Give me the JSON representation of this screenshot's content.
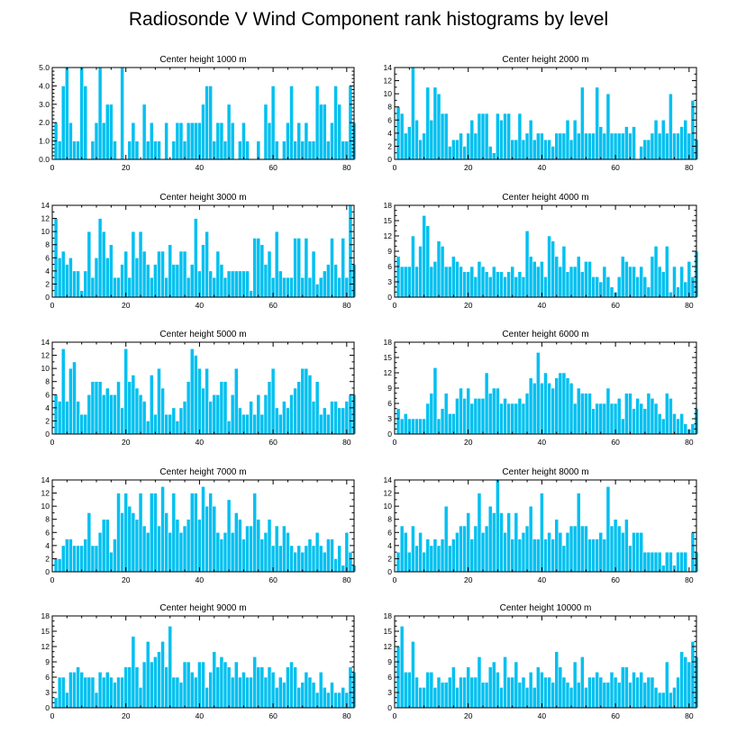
{
  "title": "Radiosonde V Wind Component rank histograms by level",
  "colors": {
    "bar": "#00c0f0",
    "bar_edge": "#ffffff",
    "axis": "#000000"
  },
  "chart_data": [
    {
      "type": "bar",
      "title": "Center height 1000 m",
      "xlim": [
        0,
        82
      ],
      "ylim": [
        0,
        5
      ],
      "xticks": [
        0,
        20,
        40,
        60,
        80
      ],
      "yticks": [
        0,
        1,
        2,
        3,
        4,
        5
      ],
      "ytick_labels": [
        "0.0",
        "1.0",
        "2.0",
        "3.0",
        "4.0",
        "5.0"
      ],
      "values": [
        2,
        1,
        4,
        5,
        2,
        1,
        1,
        5,
        4,
        0,
        1,
        2,
        5,
        2,
        3,
        3,
        1,
        0,
        5,
        0,
        1,
        2,
        1,
        0,
        3,
        1,
        2,
        1,
        1,
        0,
        2,
        0,
        1,
        2,
        2,
        1,
        2,
        2,
        2,
        2,
        3,
        4,
        4,
        1,
        2,
        2,
        1,
        3,
        2,
        0,
        1,
        2,
        1,
        0,
        0,
        1,
        0,
        3,
        2,
        4,
        1,
        0,
        1,
        2,
        4,
        1,
        2,
        1,
        2,
        1,
        1,
        4,
        3,
        3,
        1,
        2,
        4,
        3,
        1,
        1,
        4,
        2
      ]
    },
    {
      "type": "bar",
      "title": "Center height 2000 m",
      "xlim": [
        0,
        82
      ],
      "ylim": [
        0,
        14
      ],
      "xticks": [
        0,
        20,
        40,
        60,
        80
      ],
      "yticks": [
        0,
        2,
        4,
        6,
        8,
        10,
        12,
        14
      ],
      "ytick_labels": [
        "0",
        "2",
        "4",
        "6",
        "8",
        "10",
        "12",
        "14"
      ],
      "values": [
        8,
        7,
        4,
        5,
        14,
        6,
        3,
        4,
        11,
        6,
        11,
        10,
        7,
        7,
        2,
        3,
        3,
        4,
        2,
        4,
        6,
        4,
        7,
        7,
        7,
        2,
        1,
        7,
        6,
        7,
        7,
        3,
        3,
        7,
        3,
        4,
        6,
        3,
        4,
        4,
        3,
        3,
        2,
        4,
        4,
        4,
        6,
        3,
        6,
        4,
        11,
        4,
        4,
        4,
        11,
        5,
        4,
        10,
        4,
        4,
        4,
        4,
        5,
        4,
        5,
        0,
        2,
        3,
        3,
        4,
        6,
        4,
        6,
        4,
        10,
        4,
        4,
        5,
        6,
        4,
        9,
        3
      ]
    },
    {
      "type": "bar",
      "title": "Center height 3000 m",
      "xlim": [
        0,
        82
      ],
      "ylim": [
        0,
        14
      ],
      "xticks": [
        0,
        20,
        40,
        60,
        80
      ],
      "yticks": [
        0,
        2,
        4,
        6,
        8,
        10,
        12,
        14
      ],
      "ytick_labels": [
        "0",
        "2",
        "4",
        "6",
        "8",
        "10",
        "12",
        "14"
      ],
      "values": [
        12,
        6,
        7,
        5,
        6,
        4,
        4,
        1,
        4,
        10,
        3,
        6,
        12,
        10,
        6,
        8,
        3,
        3,
        5,
        7,
        3,
        10,
        6,
        10,
        7,
        5,
        3,
        5,
        7,
        7,
        3,
        8,
        5,
        5,
        7,
        7,
        3,
        5,
        12,
        4,
        8,
        10,
        4,
        3,
        7,
        5,
        3,
        4,
        4,
        4,
        4,
        4,
        4,
        1,
        9,
        9,
        8,
        5,
        7,
        3,
        10,
        4,
        3,
        3,
        3,
        9,
        9,
        3,
        9,
        3,
        7,
        2,
        3,
        4,
        5,
        9,
        5,
        3,
        9,
        3,
        14,
        5
      ]
    },
    {
      "type": "bar",
      "title": "Center height 4000 m",
      "xlim": [
        0,
        82
      ],
      "ylim": [
        0,
        18
      ],
      "xticks": [
        0,
        20,
        40,
        60,
        80
      ],
      "yticks": [
        0,
        3,
        6,
        9,
        12,
        15,
        18
      ],
      "ytick_labels": [
        "0",
        "3",
        "6",
        "9",
        "12",
        "15",
        "18"
      ],
      "values": [
        8,
        6,
        6,
        6,
        12,
        6,
        10,
        16,
        14,
        6,
        7,
        11,
        10,
        6,
        6,
        8,
        7,
        6,
        5,
        5,
        6,
        4,
        7,
        6,
        5,
        4,
        6,
        5,
        5,
        4,
        5,
        6,
        4,
        5,
        4,
        13,
        8,
        7,
        6,
        7,
        4,
        12,
        11,
        8,
        6,
        10,
        5,
        6,
        6,
        8,
        5,
        7,
        7,
        4,
        4,
        3,
        6,
        4,
        2,
        1,
        4,
        8,
        7,
        6,
        6,
        4,
        6,
        4,
        2,
        8,
        10,
        6,
        5,
        10,
        1,
        6,
        2,
        6,
        3,
        7,
        4,
        9
      ]
    },
    {
      "type": "bar",
      "title": "Center height 5000 m",
      "xlim": [
        0,
        82
      ],
      "ylim": [
        0,
        14
      ],
      "xticks": [
        0,
        20,
        40,
        60,
        80
      ],
      "yticks": [
        0,
        2,
        4,
        6,
        8,
        10,
        12,
        14
      ],
      "ytick_labels": [
        "0",
        "2",
        "4",
        "6",
        "8",
        "10",
        "12",
        "14"
      ],
      "values": [
        6,
        5,
        13,
        5,
        10,
        11,
        5,
        3,
        3,
        6,
        8,
        8,
        8,
        6,
        7,
        6,
        6,
        8,
        4,
        13,
        8,
        9,
        7,
        6,
        5,
        2,
        9,
        3,
        10,
        7,
        3,
        3,
        4,
        2,
        4,
        5,
        8,
        13,
        12,
        10,
        7,
        10,
        5,
        6,
        6,
        8,
        8,
        2,
        6,
        10,
        4,
        3,
        3,
        5,
        3,
        6,
        3,
        6,
        8,
        10,
        4,
        3,
        5,
        4,
        6,
        7,
        8,
        10,
        10,
        9,
        5,
        8,
        3,
        4,
        3,
        5,
        5,
        4,
        4,
        5,
        6,
        6
      ]
    },
    {
      "type": "bar",
      "title": "Center height 6000 m",
      "xlim": [
        0,
        82
      ],
      "ylim": [
        0,
        18
      ],
      "xticks": [
        0,
        20,
        40,
        60,
        80
      ],
      "yticks": [
        0,
        3,
        6,
        9,
        12,
        15,
        18
      ],
      "ytick_labels": [
        "0",
        "3",
        "6",
        "9",
        "12",
        "15",
        "18"
      ],
      "values": [
        5,
        3,
        4,
        3,
        3,
        3,
        3,
        3,
        6,
        8,
        13,
        3,
        5,
        8,
        4,
        4,
        7,
        9,
        7,
        9,
        6,
        7,
        7,
        7,
        12,
        8,
        9,
        9,
        6,
        7,
        6,
        6,
        6,
        7,
        6,
        8,
        11,
        10,
        16,
        10,
        12,
        10,
        9,
        11,
        12,
        12,
        11,
        10,
        6,
        9,
        8,
        8,
        8,
        5,
        6,
        6,
        6,
        9,
        6,
        6,
        7,
        3,
        8,
        8,
        5,
        7,
        6,
        5,
        8,
        7,
        6,
        4,
        3,
        8,
        7,
        4,
        3,
        4,
        2,
        1,
        2,
        5
      ]
    },
    {
      "type": "bar",
      "title": "Center height 7000 m",
      "xlim": [
        0,
        82
      ],
      "ylim": [
        0,
        14
      ],
      "xticks": [
        0,
        20,
        40,
        60,
        80
      ],
      "yticks": [
        0,
        2,
        4,
        6,
        8,
        10,
        12,
        14
      ],
      "ytick_labels": [
        "0",
        "2",
        "4",
        "6",
        "8",
        "10",
        "12",
        "14"
      ],
      "values": [
        2,
        2,
        4,
        5,
        5,
        4,
        4,
        4,
        5,
        9,
        4,
        4,
        6,
        8,
        8,
        3,
        5,
        12,
        9,
        12,
        10,
        9,
        8,
        12,
        7,
        6,
        12,
        12,
        7,
        13,
        9,
        6,
        12,
        8,
        6,
        7,
        8,
        12,
        12,
        8,
        13,
        10,
        12,
        10,
        6,
        5,
        6,
        11,
        6,
        9,
        8,
        5,
        7,
        7,
        12,
        8,
        5,
        6,
        8,
        4,
        7,
        4,
        7,
        6,
        4,
        3,
        4,
        3,
        4,
        5,
        4,
        6,
        4,
        3,
        5,
        5,
        2,
        4,
        1,
        6,
        3,
        1
      ]
    },
    {
      "type": "bar",
      "title": "Center height 8000 m",
      "xlim": [
        0,
        82
      ],
      "ylim": [
        0,
        14
      ],
      "xticks": [
        0,
        20,
        40,
        60,
        80
      ],
      "yticks": [
        0,
        2,
        4,
        6,
        8,
        10,
        12,
        14
      ],
      "ytick_labels": [
        "0",
        "2",
        "4",
        "6",
        "8",
        "10",
        "12",
        "14"
      ],
      "values": [
        3,
        7,
        6,
        3,
        7,
        4,
        6,
        3,
        5,
        4,
        5,
        4,
        5,
        10,
        4,
        5,
        6,
        7,
        7,
        9,
        5,
        7,
        12,
        6,
        7,
        10,
        9,
        14,
        9,
        6,
        9,
        5,
        9,
        5,
        6,
        7,
        10,
        5,
        5,
        12,
        5,
        6,
        5,
        8,
        6,
        4,
        6,
        7,
        7,
        12,
        7,
        7,
        5,
        5,
        5,
        6,
        5,
        13,
        7,
        8,
        7,
        6,
        8,
        4,
        6,
        6,
        6,
        3,
        3,
        3,
        3,
        3,
        1,
        3,
        3,
        1,
        3,
        3,
        3,
        0,
        6,
        3
      ]
    },
    {
      "type": "bar",
      "title": "Center height 9000 m",
      "xlim": [
        0,
        82
      ],
      "ylim": [
        0,
        18
      ],
      "xticks": [
        0,
        20,
        40,
        60,
        80
      ],
      "yticks": [
        0,
        3,
        6,
        9,
        12,
        15,
        18
      ],
      "ytick_labels": [
        "0",
        "3",
        "6",
        "9",
        "12",
        "15",
        "18"
      ],
      "values": [
        2,
        6,
        6,
        3,
        7,
        7,
        8,
        7,
        6,
        6,
        6,
        3,
        7,
        6,
        7,
        6,
        5,
        6,
        6,
        8,
        8,
        14,
        8,
        4,
        9,
        13,
        9,
        10,
        11,
        13,
        8,
        16,
        6,
        6,
        5,
        9,
        9,
        7,
        6,
        9,
        9,
        4,
        7,
        11,
        8,
        10,
        9,
        8,
        6,
        9,
        6,
        7,
        6,
        6,
        10,
        8,
        8,
        6,
        8,
        7,
        4,
        6,
        5,
        8,
        9,
        8,
        4,
        5,
        7,
        6,
        5,
        3,
        7,
        4,
        3,
        5,
        3,
        3,
        4,
        3,
        8,
        7
      ]
    },
    {
      "type": "bar",
      "title": "Center height 10000 m",
      "xlim": [
        0,
        82
      ],
      "ylim": [
        0,
        18
      ],
      "xticks": [
        0,
        20,
        40,
        60,
        80
      ],
      "yticks": [
        0,
        3,
        6,
        9,
        12,
        15,
        18
      ],
      "ytick_labels": [
        "0",
        "3",
        "6",
        "9",
        "12",
        "15",
        "18"
      ],
      "values": [
        12,
        16,
        7,
        7,
        13,
        6,
        4,
        4,
        7,
        7,
        4,
        6,
        5,
        5,
        6,
        8,
        4,
        6,
        6,
        8,
        6,
        6,
        10,
        5,
        5,
        8,
        9,
        7,
        4,
        10,
        6,
        6,
        9,
        5,
        6,
        4,
        7,
        4,
        8,
        7,
        6,
        6,
        5,
        11,
        8,
        6,
        5,
        4,
        9,
        5,
        10,
        4,
        6,
        6,
        7,
        6,
        5,
        5,
        7,
        6,
        5,
        8,
        8,
        5,
        7,
        6,
        7,
        5,
        6,
        6,
        4,
        3,
        3,
        9,
        3,
        4,
        6,
        11,
        10,
        9,
        13,
        10
      ]
    }
  ]
}
